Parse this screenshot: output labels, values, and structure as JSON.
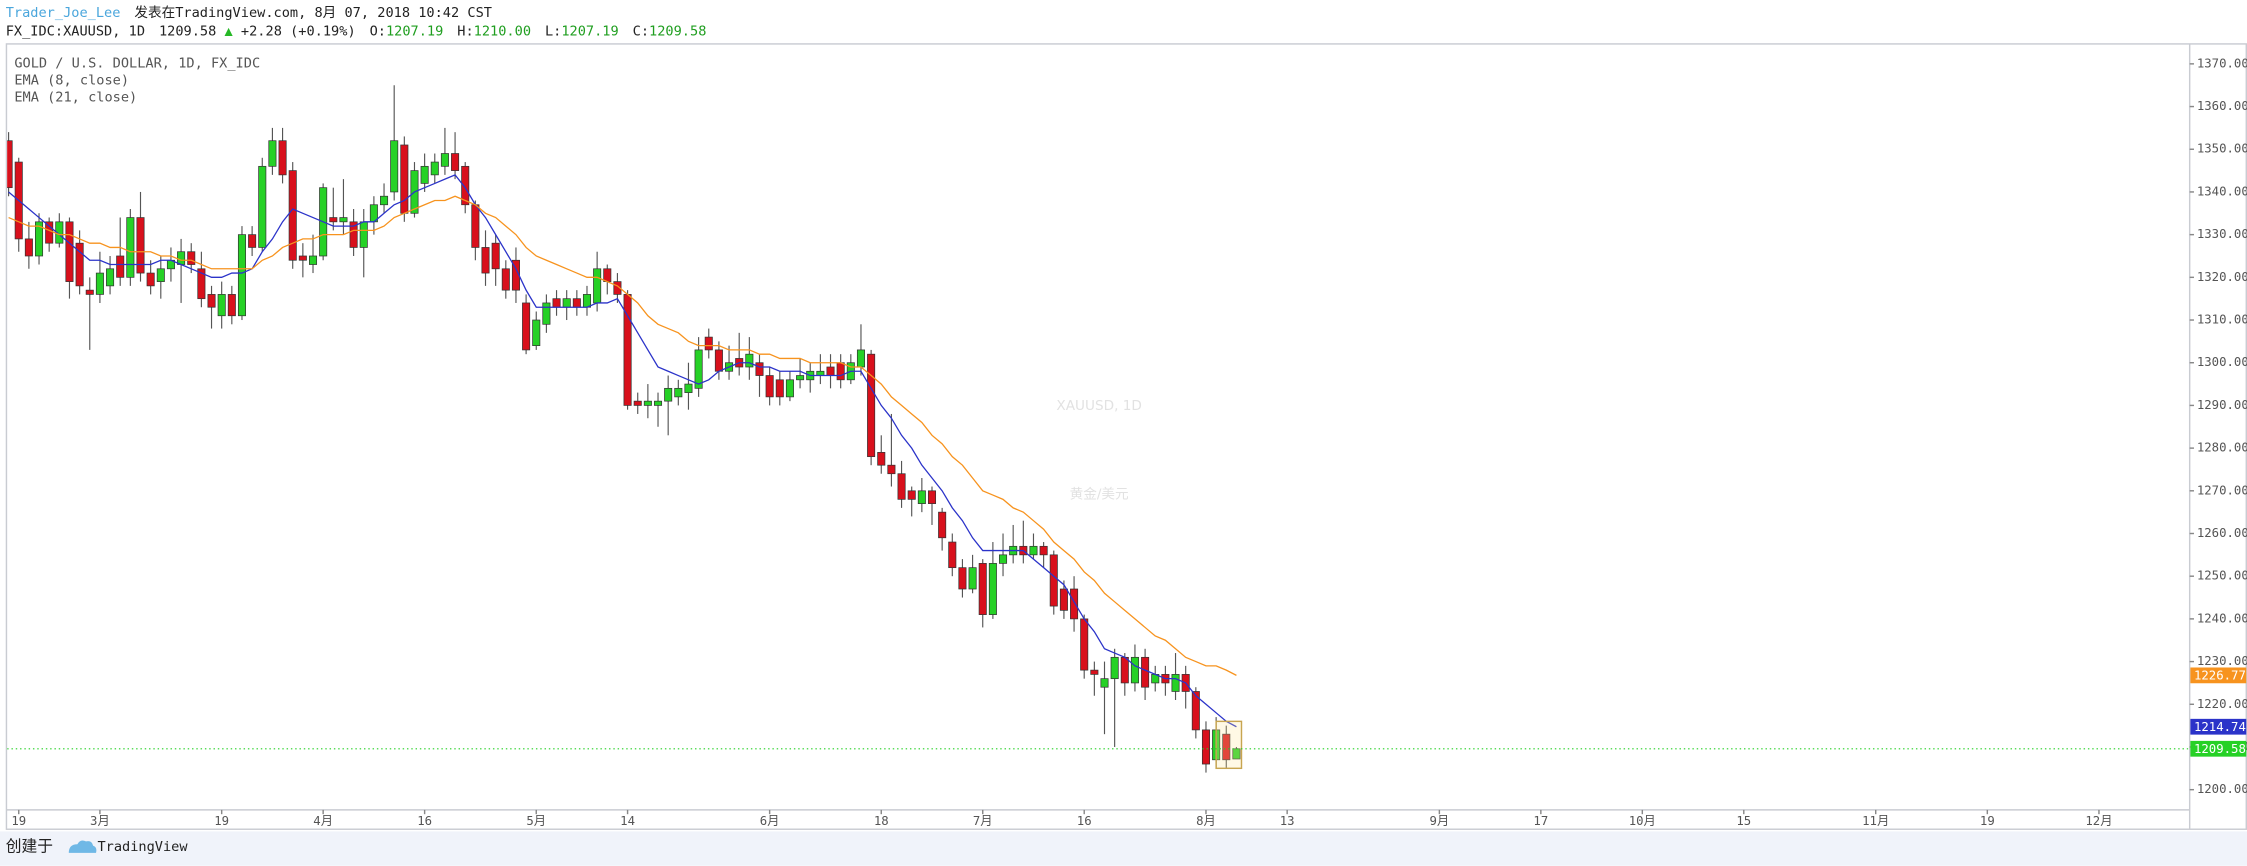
{
  "header": {
    "author": "Trader_Joe_Lee",
    "published": "发表在TradingView.com, 8月 07, 2018 10:42 CST",
    "symbol": "FX_IDC:XAUUSD, 1D",
    "last": "1209.58",
    "arrow": "▲",
    "change": "+2.28 (+0.19%)",
    "ohlc": [
      {
        "label": "O:",
        "value": "1207.19"
      },
      {
        "label": "H:",
        "value": "1210.00"
      },
      {
        "label": "L:",
        "value": "1207.19"
      },
      {
        "label": "C:",
        "value": "1209.58"
      }
    ]
  },
  "footer": {
    "created": "创建于",
    "brand": "TradingView"
  },
  "chart_data": {
    "type": "candlestick",
    "name": "GOLD / U.S. DOLLAR, 1D, FX_IDC",
    "watermark": "XAUUSD, 1D",
    "watermark_sub": "黄金/美元",
    "up_color": "#26d126",
    "down_color": "#d8101c",
    "grid": false,
    "xlim": [
      -0.14,
      214.8
    ],
    "ylim": [
      1195.6,
      1374.5
    ],
    "yticks": [
      {
        "value": 1200,
        "label": "1200.00"
      },
      {
        "value": 1210,
        "label": "1210.00"
      },
      {
        "value": 1220,
        "label": "1220.00"
      },
      {
        "value": 1230,
        "label": "1230.00"
      },
      {
        "value": 1240,
        "label": "1240.00"
      },
      {
        "value": 1250,
        "label": "1250.00"
      },
      {
        "value": 1260,
        "label": "1260.00"
      },
      {
        "value": 1270,
        "label": "1270.00"
      },
      {
        "value": 1280,
        "label": "1280.00"
      },
      {
        "value": 1290,
        "label": "1290.00"
      },
      {
        "value": 1300,
        "label": "1300.00"
      },
      {
        "value": 1310,
        "label": "1310.00"
      },
      {
        "value": 1320,
        "label": "1320.00"
      },
      {
        "value": 1330,
        "label": "1330.00"
      },
      {
        "value": 1340,
        "label": "1340.00"
      },
      {
        "value": 1350,
        "label": "1350.00"
      },
      {
        "value": 1360,
        "label": "1360.00"
      },
      {
        "value": 1370,
        "label": "1370.00"
      }
    ],
    "xticks": [
      {
        "value": 1,
        "label": "19"
      },
      {
        "value": 9,
        "label": "3月"
      },
      {
        "value": 21,
        "label": "19"
      },
      {
        "value": 31,
        "label": "4月"
      },
      {
        "value": 41,
        "label": "16"
      },
      {
        "value": 52,
        "label": "5月"
      },
      {
        "value": 61,
        "label": "14"
      },
      {
        "value": 75,
        "label": "6月"
      },
      {
        "value": 86,
        "label": "18"
      },
      {
        "value": 96,
        "label": "7月"
      },
      {
        "value": 106,
        "label": "16"
      },
      {
        "value": 118,
        "label": "8月"
      },
      {
        "value": 126,
        "label": "13"
      },
      {
        "value": 141,
        "label": "9月"
      },
      {
        "value": 151,
        "label": "17"
      },
      {
        "value": 161,
        "label": "10月"
      },
      {
        "value": 171,
        "label": "15"
      },
      {
        "value": 184,
        "label": "11月"
      },
      {
        "value": 195,
        "label": "19"
      },
      {
        "value": 206,
        "label": "12月"
      }
    ],
    "open": [
      1352,
      1347,
      1329,
      1325,
      1333,
      1328,
      1333,
      1328,
      1317,
      1316,
      1318,
      1325,
      1320,
      1334,
      1321,
      1319,
      1322,
      1323,
      1326,
      1322,
      1316,
      1311,
      1316,
      1311,
      1330,
      1327,
      1346,
      1352,
      1345,
      1325,
      1323,
      1325,
      1334,
      1333,
      1333,
      1327,
      1333,
      1337,
      1340,
      1351,
      1335,
      1342,
      1344,
      1346,
      1349,
      1346,
      1337,
      1327,
      1328,
      1322,
      1324,
      1314,
      1304,
      1309,
      1315,
      1313,
      1315,
      1313,
      1314,
      1322,
      1319,
      1316,
      1291,
      1290,
      1290,
      1291,
      1292,
      1293,
      1294,
      1306,
      1303,
      1298,
      1301,
      1299,
      1300,
      1297,
      1296,
      1292,
      1296,
      1296,
      1297,
      1299,
      1300,
      1296,
      1299,
      1302,
      1279,
      1276,
      1274,
      1270,
      1267,
      1270,
      1265,
      1258,
      1252,
      1247,
      1253,
      1241,
      1253,
      1255,
      1257,
      1255,
      1257,
      1255,
      1247,
      1247,
      1240,
      1228,
      1224,
      1226,
      1231,
      1225,
      1231,
      1225,
      1227,
      1223,
      1227,
      1223,
      1214,
      1207,
      1213,
      1207.19
    ],
    "high": [
      1354,
      1348,
      1333,
      1335,
      1334,
      1335,
      1334,
      1331,
      1320,
      1326,
      1325,
      1334,
      1336,
      1340,
      1324,
      1325,
      1327,
      1329,
      1328,
      1326,
      1318,
      1319,
      1318,
      1332,
      1332,
      1348,
      1355,
      1355,
      1347,
      1328,
      1330,
      1342,
      1341,
      1343,
      1336,
      1336,
      1339,
      1342,
      1365,
      1353,
      1347,
      1349,
      1349,
      1355,
      1354,
      1347,
      1338,
      1331,
      1330,
      1324,
      1327,
      1316,
      1312,
      1316,
      1317,
      1317,
      1317,
      1318,
      1326,
      1323,
      1321,
      1317,
      1293,
      1295,
      1293,
      1297,
      1296,
      1300,
      1306,
      1308,
      1305,
      1304,
      1307,
      1306,
      1302,
      1299,
      1298,
      1298,
      1301,
      1300,
      1302,
      1302,
      1302,
      1302,
      1309,
      1303,
      1283,
      1288,
      1277,
      1271,
      1273,
      1271,
      1266,
      1260,
      1254,
      1255,
      1254,
      1258,
      1260,
      1262,
      1263,
      1260,
      1258,
      1256,
      1249,
      1250,
      1241,
      1230,
      1230,
      1233,
      1232,
      1234,
      1233,
      1229,
      1229,
      1232,
      1229,
      1224,
      1216,
      1217,
      1215,
      1210
    ],
    "low": [
      1339,
      1326,
      1322,
      1323,
      1326,
      1327,
      1315,
      1316,
      1303,
      1314,
      1316,
      1318,
      1318,
      1319,
      1316,
      1315,
      1319,
      1314,
      1321,
      1313,
      1308,
      1308,
      1309,
      1310,
      1325,
      1326,
      1344,
      1342,
      1322,
      1320,
      1321,
      1324,
      1331,
      1330,
      1325,
      1320,
      1330,
      1335,
      1338,
      1333,
      1334,
      1340,
      1342,
      1344,
      1343,
      1335,
      1324,
      1318,
      1318,
      1315,
      1314,
      1302,
      1303,
      1307,
      1311,
      1310,
      1311,
      1311,
      1312,
      1316,
      1314,
      1289,
      1288,
      1287,
      1285,
      1283,
      1290,
      1289,
      1292,
      1301,
      1296,
      1296,
      1297,
      1296,
      1292,
      1290,
      1290,
      1291,
      1294,
      1293,
      1295,
      1294,
      1294,
      1295,
      1297,
      1276,
      1274,
      1271,
      1266,
      1264,
      1265,
      1262,
      1256,
      1250,
      1245,
      1246,
      1238,
      1240,
      1250,
      1253,
      1253,
      1254,
      1252,
      1241,
      1240,
      1237,
      1226,
      1222,
      1213,
      1210,
      1222,
      1223,
      1221,
      1223,
      1222,
      1221,
      1219,
      1212,
      1204,
      1205,
      1205,
      1207.19
    ],
    "close": [
      1341,
      1329,
      1325,
      1333,
      1328,
      1333,
      1319,
      1318,
      1316,
      1321,
      1322,
      1320,
      1334,
      1321,
      1318,
      1322,
      1324,
      1326,
      1323,
      1315,
      1313,
      1316,
      1311,
      1330,
      1327,
      1346,
      1352,
      1344,
      1324,
      1324,
      1325,
      1341,
      1333,
      1334,
      1327,
      1333,
      1337,
      1339,
      1352,
      1335,
      1345,
      1346,
      1347,
      1349,
      1345,
      1337,
      1327,
      1321,
      1322,
      1317,
      1317,
      1303,
      1310,
      1314,
      1313,
      1315,
      1313,
      1316,
      1322,
      1319,
      1316,
      1290,
      1290,
      1291,
      1291,
      1294,
      1294,
      1295,
      1303,
      1303,
      1298,
      1300,
      1299,
      1302,
      1297,
      1292,
      1292,
      1296,
      1297,
      1298,
      1298,
      1297,
      1296,
      1300,
      1303,
      1278,
      1276,
      1274,
      1268,
      1268,
      1270,
      1267,
      1259,
      1252,
      1247,
      1252,
      1241,
      1253,
      1255,
      1257,
      1255,
      1257,
      1255,
      1243,
      1242,
      1240,
      1228,
      1227,
      1226,
      1231,
      1225,
      1231,
      1224,
      1227,
      1225,
      1227,
      1223,
      1214,
      1206,
      1214,
      1207,
      1209.58
    ],
    "series": [
      {
        "name": "EMA (8, close)",
        "color": "#2b33c9",
        "values": [
          1340,
          1338,
          1336,
          1334,
          1332,
          1330,
          1328,
          1326,
          1324,
          1324,
          1323,
          1323,
          1323,
          1323,
          1323,
          1324,
          1324,
          1323,
          1322,
          1321,
          1320,
          1320,
          1321,
          1321,
          1322,
          1326,
          1329,
          1333,
          1336,
          1335,
          1334,
          1333,
          1332,
          1332,
          1332,
          1333,
          1333,
          1335,
          1337,
          1338,
          1340,
          1341,
          1342,
          1343,
          1344,
          1341,
          1337,
          1334,
          1330,
          1326,
          1322,
          1317,
          1313,
          1313,
          1313,
          1313,
          1313,
          1313,
          1314,
          1314,
          1315,
          1311,
          1307,
          1303,
          1299,
          1298,
          1297,
          1296,
          1295,
          1296,
          1298,
          1299,
          1300,
          1300,
          1299,
          1299,
          1298,
          1298,
          1298,
          1297,
          1297,
          1297,
          1297,
          1298,
          1298,
          1294,
          1290,
          1287,
          1283,
          1280,
          1276,
          1273,
          1270,
          1266,
          1263,
          1259,
          1256,
          1256,
          1256,
          1256,
          1256,
          1254,
          1252,
          1250,
          1248,
          1244,
          1240,
          1237,
          1233,
          1232,
          1231,
          1229,
          1228,
          1227,
          1226,
          1226,
          1225,
          1222,
          1220,
          1218,
          1216,
          1214.74
        ]
      },
      {
        "name": "EMA (21, close)",
        "color": "#f7931e",
        "values": [
          1334,
          1333,
          1332,
          1332,
          1331,
          1330,
          1330,
          1329,
          1328,
          1328,
          1327,
          1327,
          1326,
          1326,
          1326,
          1325,
          1325,
          1324,
          1324,
          1323,
          1322,
          1322,
          1322,
          1322,
          1322,
          1324,
          1325,
          1327,
          1328,
          1329,
          1329,
          1330,
          1330,
          1330,
          1331,
          1331,
          1331,
          1332,
          1334,
          1335,
          1336,
          1337,
          1338,
          1338,
          1339,
          1338,
          1337,
          1335,
          1334,
          1332,
          1330,
          1327,
          1325,
          1324,
          1323,
          1322,
          1321,
          1320,
          1320,
          1319,
          1318,
          1316,
          1314,
          1311,
          1309,
          1308,
          1307,
          1305,
          1304,
          1304,
          1304,
          1303,
          1303,
          1303,
          1302,
          1302,
          1301,
          1301,
          1301,
          1300,
          1300,
          1300,
          1300,
          1299,
          1299,
          1297,
          1295,
          1292,
          1290,
          1288,
          1286,
          1283,
          1281,
          1278,
          1276,
          1273,
          1270,
          1269,
          1268,
          1266,
          1265,
          1263,
          1261,
          1258,
          1256,
          1254,
          1251,
          1249,
          1246,
          1244,
          1242,
          1240,
          1238,
          1236,
          1235,
          1233,
          1231,
          1230,
          1229,
          1229,
          1228,
          1226.77
        ]
      }
    ]
  }
}
